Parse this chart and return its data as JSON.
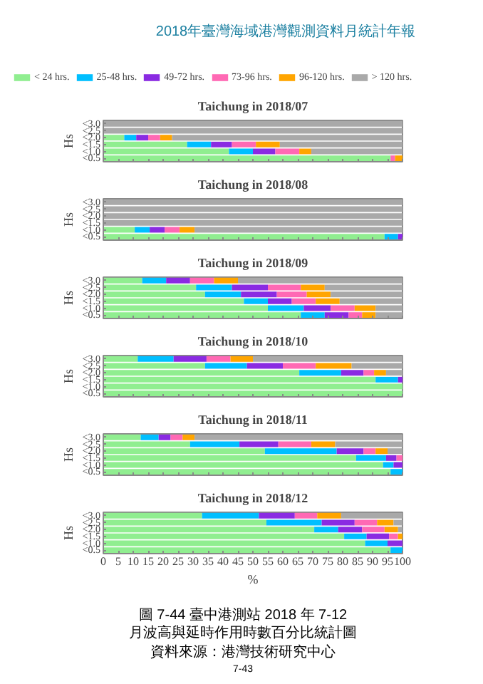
{
  "chart_data": [
    {
      "type": "bar",
      "orientation": "horizontal",
      "stacked": true,
      "title": "Taichung in 2018/07",
      "ylabel": "Hs",
      "categories": [
        "<3.0",
        "<2.5",
        "<2.0",
        "<1.5",
        "<1.0",
        "<0.5"
      ],
      "xlim": [
        0,
        100
      ],
      "xticks": [
        0,
        5,
        10,
        15,
        20,
        25,
        30,
        35,
        40,
        45,
        50,
        55,
        60,
        65,
        70,
        75,
        80,
        85,
        90,
        95,
        100
      ],
      "tick_labels": "y",
      "legend": "top",
      "annotations": [
        "2018年臺灣海域港灣觀測資料月統計年報"
      ],
      "series": [
        {
          "name": "< 24 hrs.",
          "color": "#90ee90",
          "values": [
            0,
            0,
            7,
            28,
            42,
            96
          ]
        },
        {
          "name": "25-48 hrs.",
          "color": "#00bfff",
          "values": [
            0,
            0,
            4,
            8,
            8,
            0
          ]
        },
        {
          "name": "49-72 hrs.",
          "color": "#8a2be2",
          "values": [
            0,
            0,
            4,
            7,
            7.5,
            0
          ]
        },
        {
          "name": "73-96 hrs.",
          "color": "#ff69b4",
          "values": [
            0,
            0,
            4,
            8,
            8,
            1.5
          ]
        },
        {
          "name": "96-120 hrs.",
          "color": "#ffa500",
          "values": [
            0,
            0,
            4,
            8,
            4,
            2.5
          ]
        },
        {
          "name": "> 120 hrs.",
          "color": "#a9a9a9",
          "values": [
            100,
            100,
            77,
            41,
            30.5,
            0
          ]
        }
      ]
    },
    {
      "type": "bar",
      "orientation": "horizontal",
      "stacked": true,
      "title": "Taichung in 2018/08",
      "ylabel": "Hs",
      "categories": [
        "<3.0",
        "<2.5",
        "<2.0",
        "<1.5",
        "<1.0",
        "<0.5"
      ],
      "xlim": [
        0,
        100
      ],
      "xticks": [
        0,
        5,
        10,
        15,
        20,
        25,
        30,
        35,
        40,
        45,
        50,
        55,
        60,
        65,
        70,
        75,
        80,
        85,
        90,
        95,
        100
      ],
      "tick_labels": "y",
      "series": [
        {
          "color": "#90ee90",
          "values": [
            0,
            0,
            0,
            0,
            10.5,
            94
          ]
        },
        {
          "color": "#00bfff",
          "values": [
            0,
            0,
            0,
            0,
            5,
            4.5
          ]
        },
        {
          "color": "#8a2be2",
          "values": [
            0,
            0,
            0,
            0,
            5,
            1.5
          ]
        },
        {
          "color": "#ff69b4",
          "values": [
            0,
            0,
            0,
            0,
            5,
            0
          ]
        },
        {
          "color": "#ffa500",
          "values": [
            0,
            0,
            0,
            0,
            5,
            0
          ]
        },
        {
          "color": "#a9a9a9",
          "values": [
            100,
            100,
            100,
            100,
            69.5,
            0
          ]
        }
      ]
    },
    {
      "type": "bar",
      "orientation": "horizontal",
      "stacked": true,
      "title": "Taichung in 2018/09",
      "ylabel": "Hs",
      "categories": [
        "<3.0",
        "<2.5",
        "<2.0",
        "<1.5",
        "<1.0",
        "<0.5"
      ],
      "xlim": [
        0,
        100
      ],
      "xticks": [
        0,
        5,
        10,
        15,
        20,
        25,
        30,
        35,
        40,
        45,
        50,
        55,
        60,
        65,
        70,
        75,
        80,
        85,
        90,
        95,
        100
      ],
      "tick_labels": "y",
      "series": [
        {
          "color": "#90ee90",
          "values": [
            13,
            31,
            34,
            47,
            55,
            66
          ]
        },
        {
          "color": "#00bfff",
          "values": [
            8,
            12,
            12,
            8,
            12,
            8
          ]
        },
        {
          "color": "#8a2be2",
          "values": [
            8,
            12,
            12,
            8,
            9,
            8
          ]
        },
        {
          "color": "#ff69b4",
          "values": [
            8,
            11,
            10,
            8,
            8,
            4.5
          ]
        },
        {
          "color": "#ffa500",
          "values": [
            8,
            8,
            8,
            8,
            7,
            4.5
          ]
        },
        {
          "color": "#a9a9a9",
          "values": [
            55,
            26,
            24,
            21,
            9,
            9
          ]
        }
      ]
    },
    {
      "type": "bar",
      "orientation": "horizontal",
      "stacked": true,
      "title": "Taichung in 2018/10",
      "ylabel": "Hs",
      "categories": [
        "<3.0",
        "<2.5",
        "<2.0",
        "<1.5",
        "<1.0",
        "<0.5"
      ],
      "xlim": [
        0,
        100
      ],
      "xticks": [
        0,
        5,
        10,
        15,
        20,
        25,
        30,
        35,
        40,
        45,
        50,
        55,
        60,
        65,
        70,
        75,
        80,
        85,
        90,
        95,
        100
      ],
      "tick_labels": "y",
      "series": [
        {
          "color": "#90ee90",
          "values": [
            11.5,
            34,
            65.5,
            91,
            100,
            100
          ]
        },
        {
          "color": "#00bfff",
          "values": [
            12,
            14,
            14,
            7.5,
            0,
            0
          ]
        },
        {
          "color": "#8a2be2",
          "values": [
            11,
            12,
            7.5,
            1.5,
            0,
            0
          ]
        },
        {
          "color": "#ff69b4",
          "values": [
            8,
            11,
            3.5,
            0,
            0,
            0
          ]
        },
        {
          "color": "#ffa500",
          "values": [
            7.5,
            12,
            4,
            0,
            0,
            0
          ]
        },
        {
          "color": "#a9a9a9",
          "values": [
            50,
            17,
            5.5,
            0,
            0,
            0
          ]
        }
      ]
    },
    {
      "type": "bar",
      "orientation": "horizontal",
      "stacked": true,
      "title": "Taichung in 2018/11",
      "ylabel": "Hs",
      "categories": [
        "<3.0",
        "<2.5",
        "<2.0",
        "<1.5",
        "<1.0",
        "<0.5"
      ],
      "xlim": [
        0,
        100
      ],
      "xticks": [
        0,
        5,
        10,
        15,
        20,
        25,
        30,
        35,
        40,
        45,
        50,
        55,
        60,
        65,
        70,
        75,
        80,
        85,
        90,
        95,
        100
      ],
      "tick_labels": "y",
      "series": [
        {
          "color": "#90ee90",
          "values": [
            12.5,
            29,
            54,
            84.5,
            93.5,
            96
          ]
        },
        {
          "color": "#00bfff",
          "values": [
            6,
            16.5,
            24,
            10,
            3.5,
            4
          ]
        },
        {
          "color": "#8a2be2",
          "values": [
            4,
            13,
            9,
            3.5,
            3,
            0
          ]
        },
        {
          "color": "#ff69b4",
          "values": [
            4,
            11,
            4,
            2,
            0,
            0
          ]
        },
        {
          "color": "#ffa500",
          "values": [
            4,
            8,
            4,
            0,
            0,
            0
          ]
        },
        {
          "color": "#a9a9a9",
          "values": [
            69.5,
            22.5,
            5,
            0,
            0,
            0
          ]
        }
      ]
    },
    {
      "type": "bar",
      "orientation": "horizontal",
      "stacked": true,
      "title": "Taichung in 2018/12",
      "ylabel": "Hs",
      "xlabel": "%",
      "categories": [
        "<3.0",
        "<2.5",
        "<2.0",
        "<1.5",
        "<1.0",
        "<0.5"
      ],
      "xlim": [
        0,
        100
      ],
      "xticks": [
        0,
        5,
        10,
        15,
        20,
        25,
        30,
        35,
        40,
        45,
        50,
        55,
        60,
        65,
        70,
        75,
        80,
        85,
        90,
        95,
        100
      ],
      "annotations": [
        "圖 7-44 臺中港測站 2018 年 7-12 月波高與延時作用時數百分比統計圖",
        "資料來源：港灣技術研究中心",
        "7-43"
      ],
      "series": [
        {
          "color": "#90ee90",
          "values": [
            33,
            54.5,
            70.5,
            80.5,
            87.5,
            96
          ]
        },
        {
          "color": "#00bfff",
          "values": [
            19,
            18.5,
            8,
            7.5,
            7.5,
            4
          ]
        },
        {
          "color": "#8a2be2",
          "values": [
            12,
            11,
            8,
            7.5,
            5,
            0
          ]
        },
        {
          "color": "#ff69b4",
          "values": [
            7.5,
            7.5,
            7.5,
            3,
            0,
            0
          ]
        },
        {
          "color": "#ffa500",
          "values": [
            8,
            5.5,
            4.5,
            1.5,
            0,
            0
          ]
        },
        {
          "color": "#a9a9a9",
          "values": [
            20.5,
            3,
            1.5,
            0,
            0,
            0
          ]
        }
      ]
    }
  ]
}
